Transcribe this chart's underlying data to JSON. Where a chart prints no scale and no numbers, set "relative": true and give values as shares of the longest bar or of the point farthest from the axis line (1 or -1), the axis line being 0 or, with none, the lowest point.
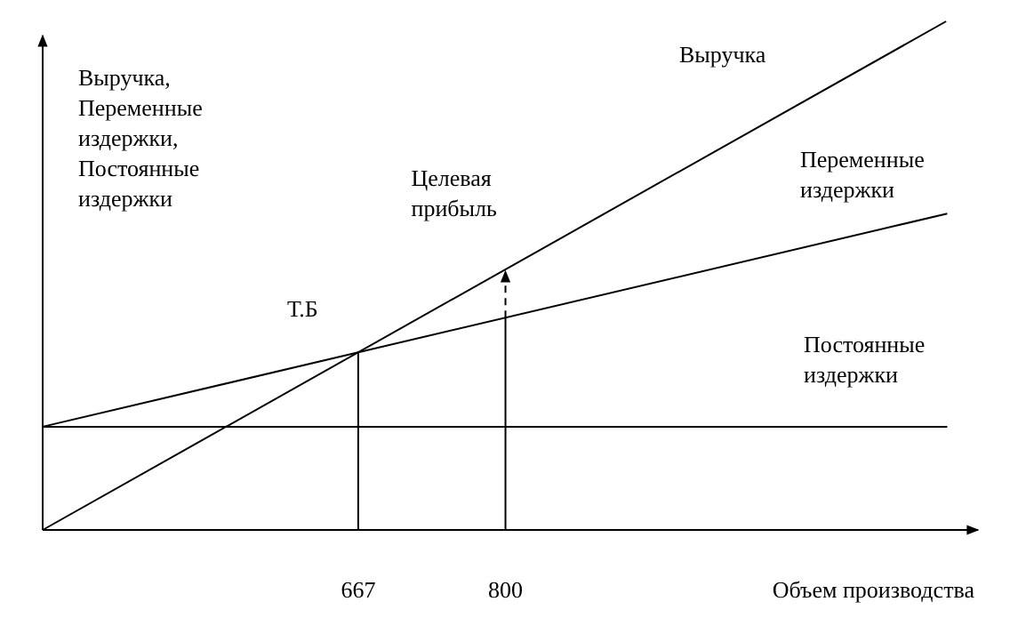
{
  "chart_data": {
    "type": "line",
    "relative": true,
    "xlabel": "Объем производства",
    "ylabel": "Выручка, Переменные издержки, Постоянные издержки",
    "xlim": [
      382,
      1230
    ],
    "xticks": [
      667,
      800
    ],
    "tick_labels": "x",
    "grid": false,
    "line_style": "solid",
    "series": [
      {
        "name": "Выручка",
        "color": "#000000",
        "x": [
          382,
          1198
        ],
        "values": [
          0,
          1
        ]
      },
      {
        "name": "Переменные издержки",
        "color": "#000000",
        "x": [
          382,
          1199
        ],
        "values": [
          0.203,
          0.622
        ]
      },
      {
        "name": "Постоянные издержки",
        "color": "#000000",
        "x": [
          382,
          1199
        ],
        "values": [
          0.203,
          0.203
        ]
      }
    ],
    "ref_lines": [
      {
        "axis": "x",
        "value": 667,
        "color": "#000000"
      },
      {
        "axis": "x",
        "value": 800,
        "color": "#000000"
      }
    ],
    "annotations": [
      {
        "text": "Т.Б",
        "x": 667,
        "y": 0.349
      },
      {
        "text": "Целевая прибыль",
        "x": 800,
        "y": 0.512
      }
    ]
  }
}
